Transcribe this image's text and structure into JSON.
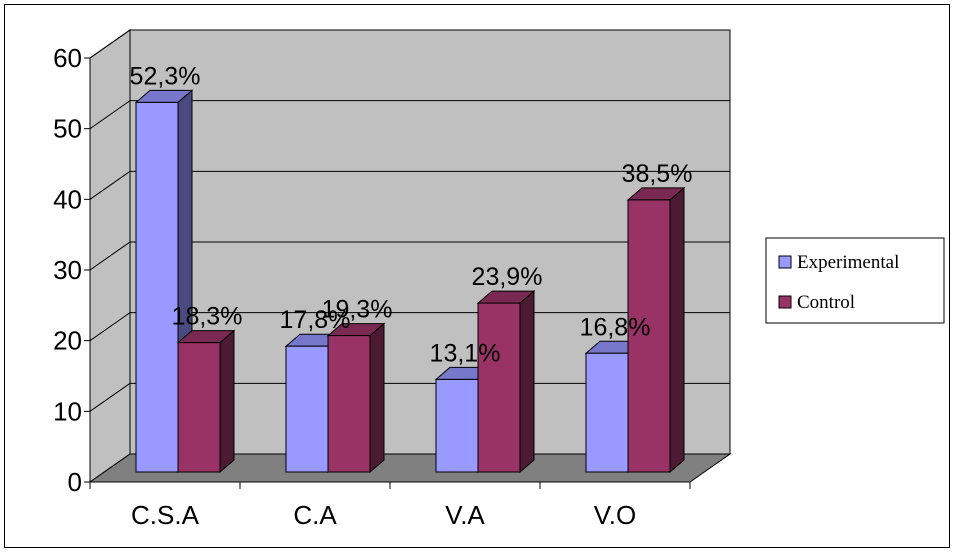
{
  "chart_data": {
    "type": "bar",
    "style": "3d-clustered-column",
    "categories": [
      "C.S.A",
      "C.A",
      "V.A",
      "V.O"
    ],
    "series": [
      {
        "name": "Experimental",
        "values": [
          52.3,
          17.8,
          13.1,
          16.8
        ],
        "labels": [
          "52,3%",
          "17,8%",
          "13,1%",
          "16,8%"
        ],
        "color": "#9999ff",
        "side_color": "#4a4a80",
        "top_color": "#7777cc"
      },
      {
        "name": "Control",
        "values": [
          18.3,
          19.3,
          23.9,
          38.5
        ],
        "labels": [
          "18,3%",
          "19,3%",
          "23,9%",
          "38,5%"
        ],
        "color": "#993366",
        "side_color": "#4d1a33",
        "top_color": "#7a2952"
      }
    ],
    "yticks": [
      "0",
      "10",
      "20",
      "30",
      "40",
      "50",
      "60"
    ],
    "ylim": [
      0,
      60
    ],
    "grid": true,
    "wall_color": "#c0c0c0",
    "floor_color": "#808080",
    "legend": "right"
  }
}
